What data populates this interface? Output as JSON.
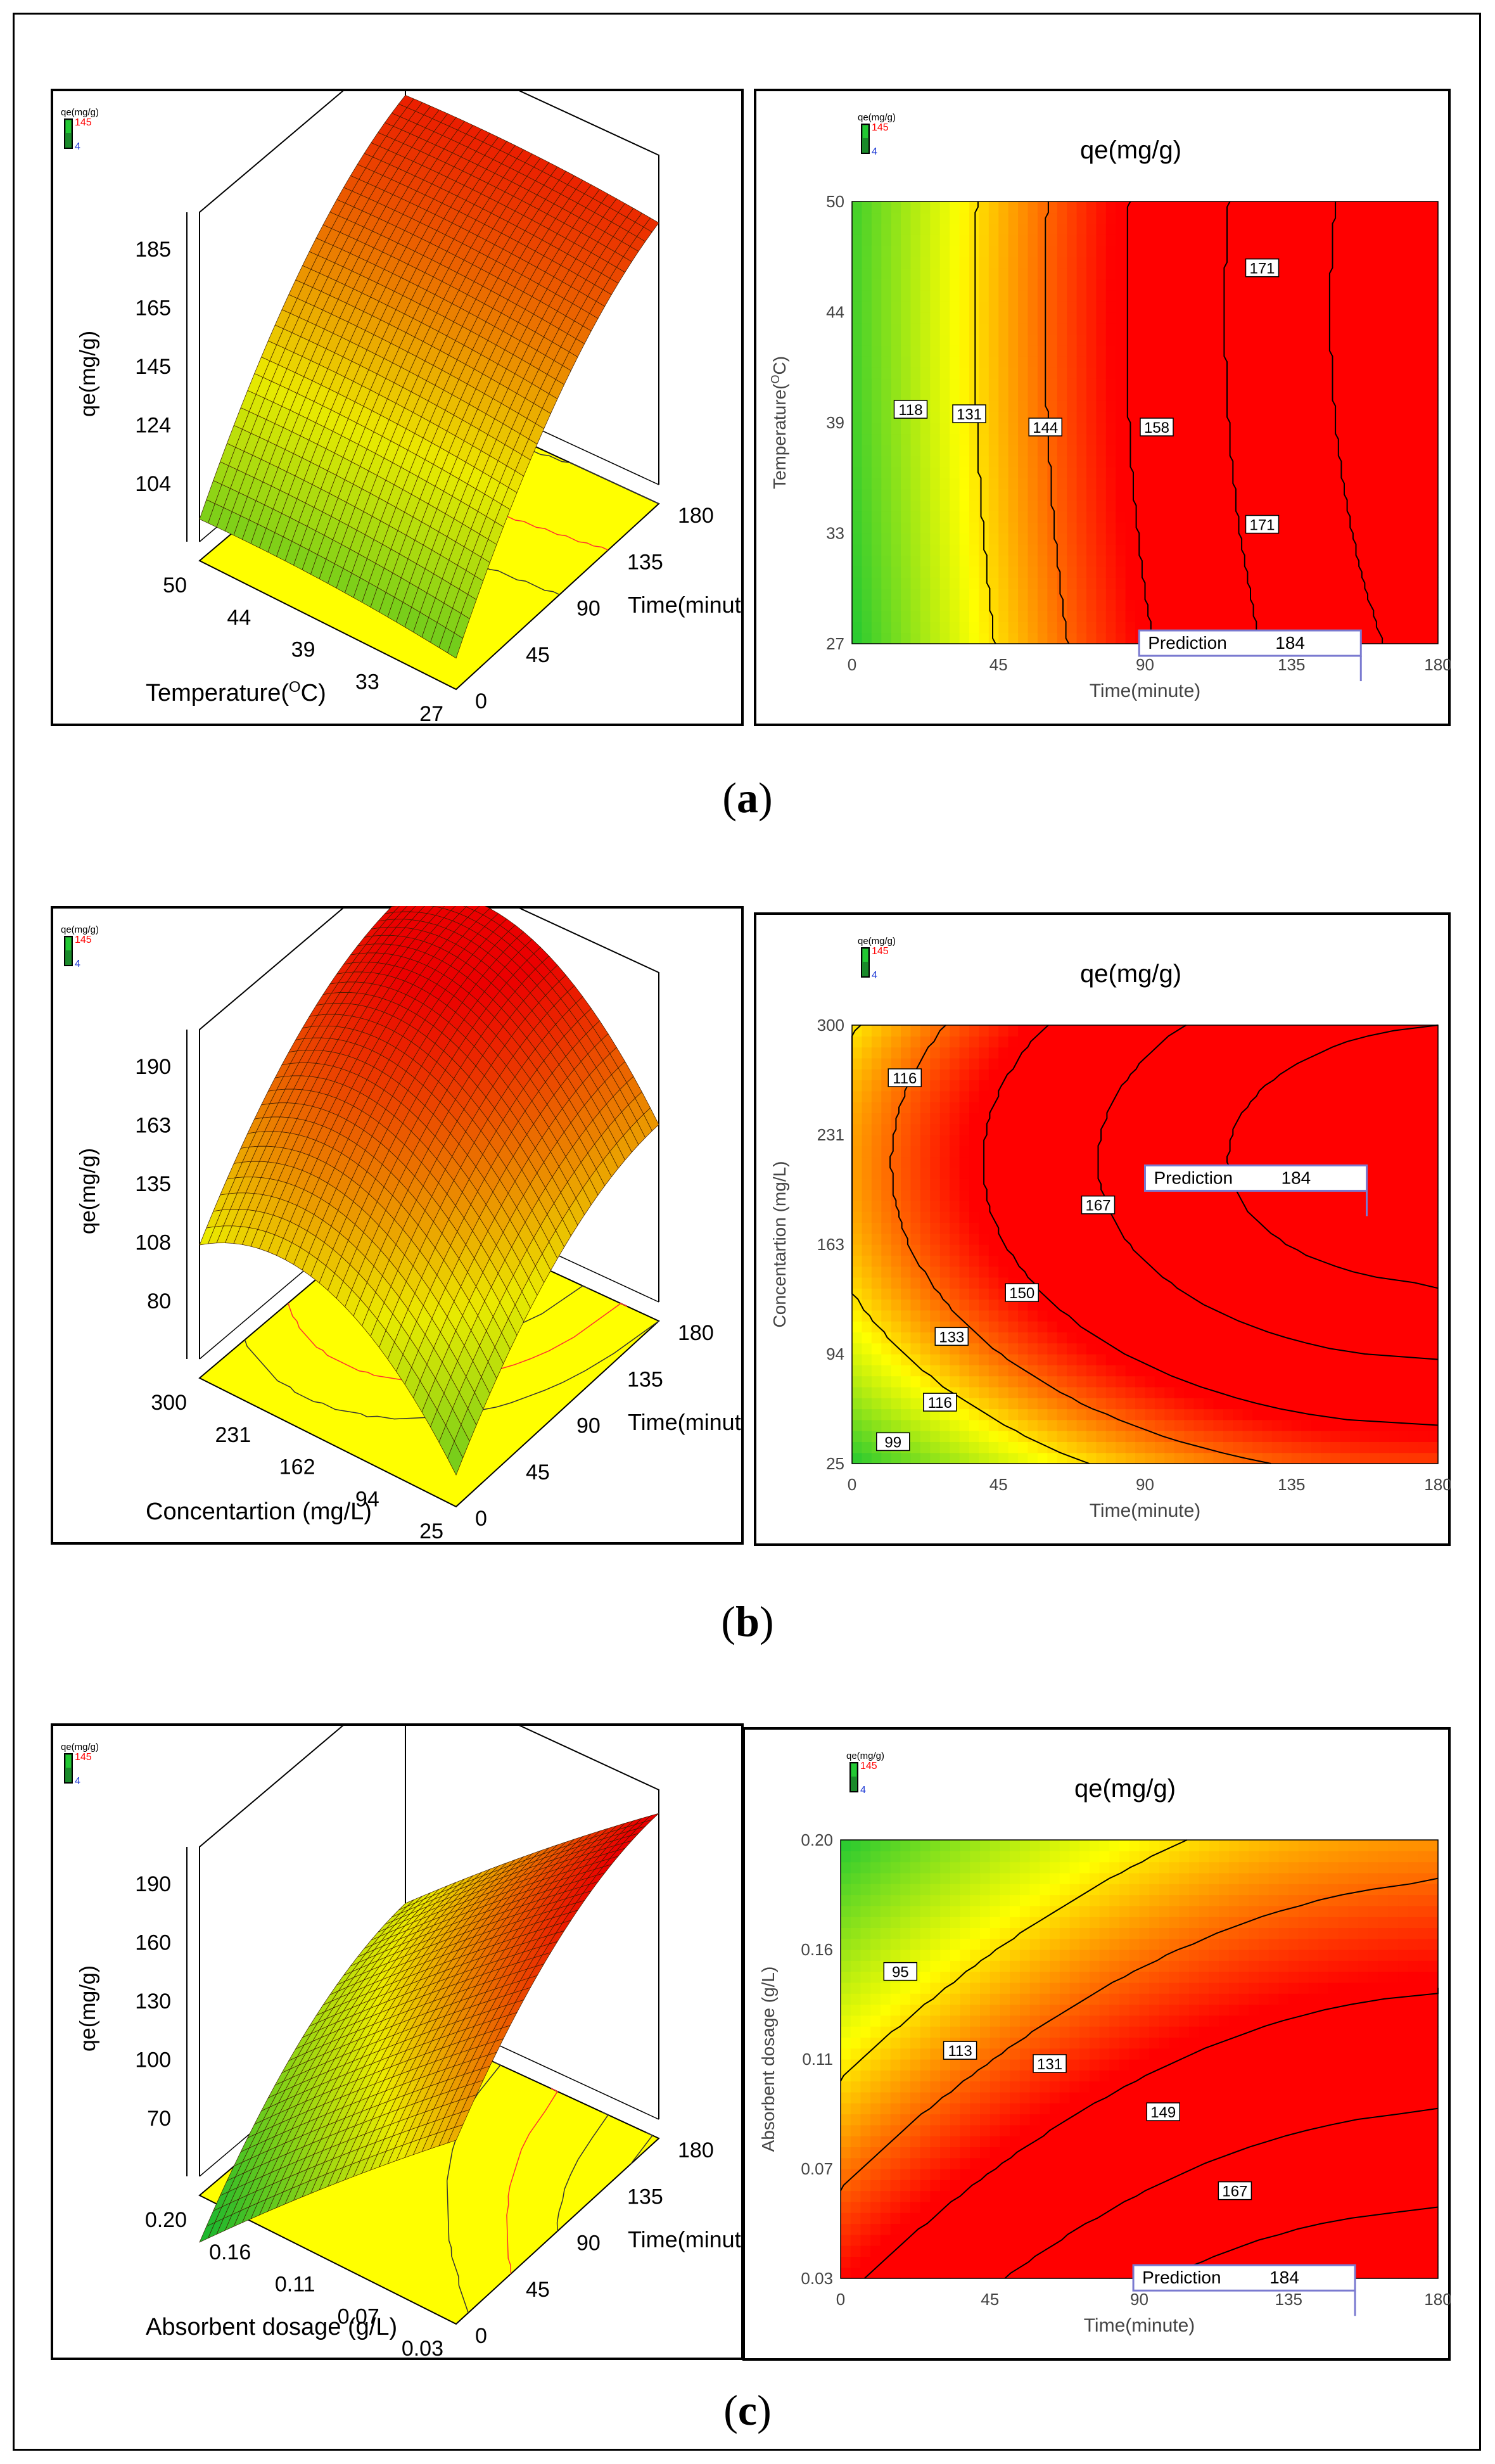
{
  "figure": {
    "captions": [
      "a",
      "b",
      "c"
    ]
  },
  "colors": {
    "low": "#22c832",
    "mid": "#ffff00",
    "high": "#ff0000",
    "legend_max": "#ff0000",
    "legend_min": "#1f3bd6"
  },
  "chart_data": [
    {
      "id": "a3d",
      "type": "surface3d",
      "legend": {
        "title": "qe(mg/g)",
        "max": "145",
        "min": "4"
      },
      "zlabel": "qe(mg/g)",
      "zticks": [
        "185",
        "165",
        "145",
        "124",
        "104"
      ],
      "xlabel": "Time(minute)",
      "xticks": [
        "0",
        "45",
        "90",
        "135",
        "180"
      ],
      "ylabel_main": "Temperature(",
      "ylabel_sup": "O",
      "ylabel_end": "C)",
      "yticks": [
        "50",
        "44",
        "39",
        "33",
        "27"
      ],
      "zlim": [
        95,
        190
      ]
    },
    {
      "id": "acontour",
      "type": "contour",
      "title": "qe(mg/g)",
      "legend": {
        "title": "qe(mg/g)",
        "max": "145",
        "min": "4"
      },
      "xlabel": "Time(minute)",
      "xticks": [
        "0",
        "45",
        "90",
        "135",
        "180"
      ],
      "ylabel_main": "Temperature(",
      "ylabel_sup": "O",
      "ylabel_end": "C)",
      "yticks": [
        "50",
        "44",
        "39",
        "33",
        "27"
      ],
      "xlim": [
        0,
        180
      ],
      "ylim": [
        27,
        50
      ],
      "contour_labels": [
        "118",
        "131",
        "144",
        "158",
        "171",
        "171"
      ],
      "prediction": {
        "label": "Prediction",
        "value": "184"
      }
    },
    {
      "id": "b3d",
      "type": "surface3d",
      "legend": {
        "title": "qe(mg/g)",
        "max": "145",
        "min": "4"
      },
      "zlabel": "qe(mg/g)",
      "zticks": [
        "190",
        "163",
        "135",
        "108",
        "80"
      ],
      "xlabel": "Time(minute)",
      "xticks": [
        "0",
        "45",
        "90",
        "135",
        "180"
      ],
      "ylabel_main": "Concentartion (mg/L)",
      "ylabel_sup": "",
      "ylabel_end": "",
      "yticks": [
        "300",
        "231",
        "162",
        "94",
        "25"
      ],
      "zlim": [
        70,
        200
      ]
    },
    {
      "id": "bcontour",
      "type": "contour",
      "title": "qe(mg/g)",
      "legend": {
        "title": "qe(mg/g)",
        "max": "145",
        "min": "4"
      },
      "xlabel": "Time(minute)",
      "xticks": [
        "0",
        "45",
        "90",
        "135",
        "180"
      ],
      "ylabel_main": "Concentartion (mg/L)",
      "ylabel_sup": "",
      "ylabel_end": "",
      "yticks": [
        "300",
        "231",
        "163",
        "94",
        "25"
      ],
      "xlim": [
        0,
        180
      ],
      "ylim": [
        25,
        300
      ],
      "contour_labels": [
        "116",
        "167",
        "150",
        "133",
        "116",
        "99"
      ],
      "prediction": {
        "label": "Prediction",
        "value": "184"
      }
    },
    {
      "id": "c3d",
      "type": "surface3d",
      "legend": {
        "title": "qe(mg/g)",
        "max": "145",
        "min": "4"
      },
      "zlabel": "qe(mg/g)",
      "zticks": [
        "190",
        "160",
        "130",
        "100",
        "70"
      ],
      "xlabel": "Time(minute)",
      "xticks": [
        "0",
        "45",
        "90",
        "135",
        "180"
      ],
      "ylabel_main": "Absorbent dosage (g/L)",
      "ylabel_sup": "",
      "ylabel_end": "",
      "yticks": [
        "0.20",
        "0.16",
        "0.11",
        "0.07",
        "0.03"
      ],
      "zlim": [
        60,
        200
      ]
    },
    {
      "id": "ccontour",
      "type": "contour",
      "title": "qe(mg/g)",
      "legend": {
        "title": "qe(mg/g)",
        "max": "145",
        "min": "4"
      },
      "xlabel": "Time(minute)",
      "xticks": [
        "0",
        "45",
        "90",
        "135",
        "180"
      ],
      "ylabel_main": "Absorbent dosage (g/L)",
      "ylabel_sup": "",
      "ylabel_end": "",
      "yticks": [
        "0.20",
        "0.16",
        "0.11",
        "0.07",
        "0.03"
      ],
      "xlim": [
        0,
        180
      ],
      "ylim": [
        0.03,
        0.2
      ],
      "contour_labels": [
        "95",
        "113",
        "131",
        "149",
        "167"
      ],
      "prediction": {
        "label": "Prediction",
        "value": "184"
      }
    }
  ]
}
